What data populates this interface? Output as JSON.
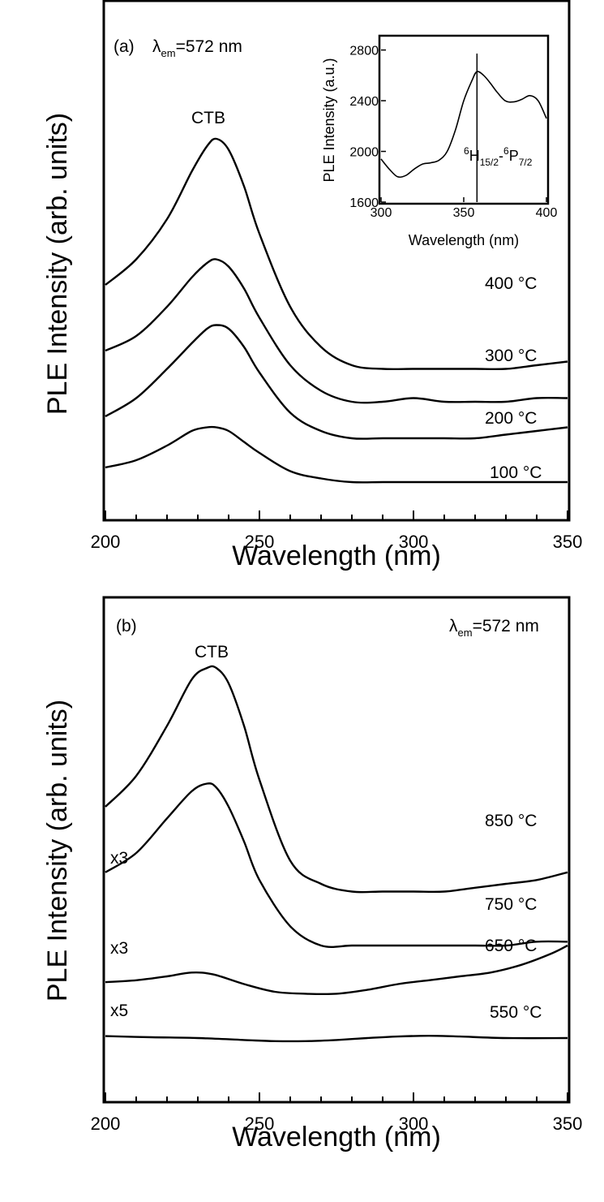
{
  "chart_data": [
    {
      "type": "line",
      "panel_label": "(a)",
      "excitation": {
        "symbol": "λ",
        "subscript": "em",
        "text": "=572 nm"
      },
      "xlabel": "Wavelength (nm)",
      "ylabel": "PLE Intensity (arb. units)",
      "xlim": [
        200,
        350
      ],
      "xticks": [
        "200",
        "250",
        "300",
        "350"
      ],
      "y_ticks_shown": false,
      "peak_annotation": "CTB",
      "series": [
        {
          "name": "400 °C",
          "multiplier": "",
          "x": [
            200,
            210,
            220,
            228,
            233,
            236,
            240,
            245,
            250,
            260,
            270,
            280,
            290,
            300,
            310,
            320,
            330,
            340,
            350
          ],
          "y": [
            0.58,
            0.65,
            0.76,
            0.89,
            0.96,
            0.98,
            0.95,
            0.85,
            0.72,
            0.52,
            0.41,
            0.36,
            0.35,
            0.35,
            0.35,
            0.35,
            0.35,
            0.36,
            0.37
          ]
        },
        {
          "name": "300 °C",
          "multiplier": "",
          "x": [
            200,
            210,
            220,
            228,
            233,
            236,
            240,
            245,
            250,
            260,
            270,
            280,
            290,
            300,
            310,
            320,
            330,
            340,
            350
          ],
          "y": [
            0.4,
            0.44,
            0.52,
            0.6,
            0.64,
            0.65,
            0.63,
            0.57,
            0.49,
            0.36,
            0.29,
            0.26,
            0.26,
            0.27,
            0.26,
            0.26,
            0.26,
            0.27,
            0.27
          ]
        },
        {
          "name": "200 °C",
          "multiplier": "",
          "x": [
            200,
            210,
            220,
            228,
            233,
            236,
            240,
            245,
            250,
            260,
            270,
            280,
            290,
            300,
            310,
            320,
            330,
            340,
            350
          ],
          "y": [
            0.22,
            0.27,
            0.35,
            0.42,
            0.46,
            0.47,
            0.46,
            0.41,
            0.34,
            0.23,
            0.18,
            0.16,
            0.16,
            0.16,
            0.16,
            0.16,
            0.17,
            0.18,
            0.19
          ]
        },
        {
          "name": "100 °C",
          "multiplier": "",
          "x": [
            200,
            210,
            220,
            228,
            233,
            236,
            240,
            245,
            250,
            260,
            270,
            280,
            290,
            300,
            310,
            320,
            330,
            340,
            350
          ],
          "y": [
            0.08,
            0.1,
            0.14,
            0.18,
            0.19,
            0.19,
            0.18,
            0.15,
            0.12,
            0.07,
            0.05,
            0.04,
            0.04,
            0.04,
            0.04,
            0.04,
            0.04,
            0.04,
            0.04
          ]
        }
      ],
      "inset": {
        "xlabel": "Wavelength (nm)",
        "ylabel": "PLE Intensity (a.u.)",
        "xlim": [
          300,
          400
        ],
        "ylim": [
          1600,
          2900
        ],
        "xticks": [
          "300",
          "350",
          "400"
        ],
        "yticks": [
          "1600",
          "2000",
          "2400",
          "2800"
        ],
        "marker_x": 358,
        "transition_label": {
          "pre": "6",
          "term1": "H",
          "sub1": "15/2",
          "dash": "-",
          "pre2": "6",
          "term2": "P",
          "sub2": "7/2"
        },
        "x": [
          300,
          305,
          310,
          315,
          320,
          325,
          330,
          335,
          340,
          345,
          350,
          355,
          358,
          362,
          366,
          370,
          375,
          380,
          385,
          390,
          395,
          400
        ],
        "y": [
          1940,
          1860,
          1800,
          1810,
          1860,
          1900,
          1910,
          1930,
          2000,
          2170,
          2400,
          2560,
          2630,
          2600,
          2540,
          2470,
          2400,
          2390,
          2410,
          2440,
          2400,
          2260
        ]
      }
    },
    {
      "type": "line",
      "panel_label": "(b)",
      "excitation": {
        "symbol": "λ",
        "subscript": "em",
        "text": "=572 nm"
      },
      "xlabel": "Wavelength (nm)",
      "ylabel": "PLE Intensity (arb. units)",
      "xlim": [
        200,
        350
      ],
      "xticks": [
        "200",
        "250",
        "300",
        "350"
      ],
      "y_ticks_shown": false,
      "peak_annotation": "CTB",
      "series": [
        {
          "name": "850 °C",
          "multiplier": "",
          "x": [
            200,
            210,
            220,
            228,
            233,
            236,
            240,
            245,
            250,
            260,
            270,
            280,
            290,
            300,
            310,
            320,
            330,
            340,
            350
          ],
          "y": [
            0.64,
            0.72,
            0.85,
            0.97,
            1.0,
            1.0,
            0.96,
            0.85,
            0.71,
            0.5,
            0.44,
            0.42,
            0.42,
            0.42,
            0.42,
            0.43,
            0.44,
            0.45,
            0.47
          ]
        },
        {
          "name": "750 °C",
          "multiplier": "x3",
          "x": [
            200,
            210,
            220,
            228,
            233,
            236,
            240,
            245,
            250,
            260,
            270,
            280,
            290,
            300,
            310,
            320,
            330,
            340,
            350
          ],
          "y": [
            0.47,
            0.52,
            0.61,
            0.68,
            0.7,
            0.69,
            0.64,
            0.55,
            0.45,
            0.33,
            0.28,
            0.28,
            0.28,
            0.28,
            0.28,
            0.28,
            0.28,
            0.29,
            0.29
          ]
        },
        {
          "name": "650 °C",
          "multiplier": "x3",
          "x": [
            200,
            210,
            220,
            228,
            235,
            245,
            255,
            265,
            275,
            285,
            295,
            305,
            315,
            325,
            335,
            345,
            350
          ],
          "y": [
            0.185,
            0.19,
            0.2,
            0.21,
            0.205,
            0.18,
            0.16,
            0.155,
            0.155,
            0.165,
            0.18,
            0.19,
            0.2,
            0.21,
            0.23,
            0.26,
            0.28
          ]
        },
        {
          "name": "550 °C",
          "multiplier": "x5",
          "x": [
            200,
            215,
            230,
            245,
            255,
            265,
            275,
            285,
            295,
            305,
            315,
            330,
            350
          ],
          "y": [
            0.045,
            0.042,
            0.04,
            0.035,
            0.032,
            0.032,
            0.035,
            0.04,
            0.044,
            0.046,
            0.044,
            0.04,
            0.04
          ]
        }
      ]
    }
  ]
}
